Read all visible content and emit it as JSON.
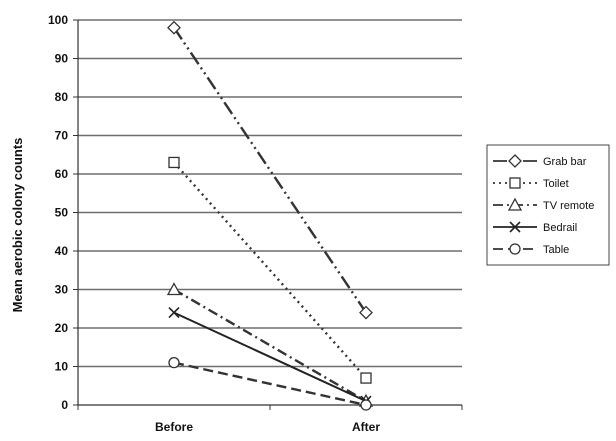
{
  "chart_data": {
    "type": "line",
    "title": "",
    "xlabel": "",
    "ylabel": "Mean aerobic colony counts",
    "categories": [
      "Before",
      "After"
    ],
    "ylim": [
      0,
      100
    ],
    "yticks": [
      0,
      10,
      20,
      30,
      40,
      50,
      60,
      70,
      80,
      90,
      100
    ],
    "grid": true,
    "legend_position": "right",
    "series": [
      {
        "name": "Grab bar",
        "values": [
          98,
          24
        ],
        "marker": "diamond",
        "dash": "long-dash-dot-dot",
        "color": "#333333"
      },
      {
        "name": "Toilet",
        "values": [
          63,
          7
        ],
        "marker": "square",
        "dash": "dotted",
        "color": "#333333"
      },
      {
        "name": "TV remote",
        "values": [
          30,
          1
        ],
        "marker": "triangle",
        "dash": "dash-dot",
        "color": "#333333"
      },
      {
        "name": "Bedrail",
        "values": [
          24,
          1
        ],
        "marker": "x",
        "dash": "solid",
        "color": "#222222"
      },
      {
        "name": "Table",
        "values": [
          11,
          0
        ],
        "marker": "circle",
        "dash": "dashed",
        "color": "#333333"
      }
    ]
  }
}
